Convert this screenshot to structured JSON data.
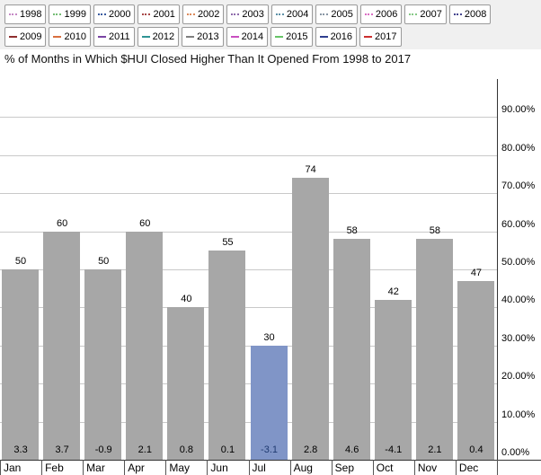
{
  "title": "% of Months in Which $HUI Closed Higher Than It Opened From 1998 to 2017",
  "legend": {
    "years": [
      {
        "label": "1998",
        "color": "#c689c6",
        "style": "dotted"
      },
      {
        "label": "1999",
        "color": "#74bd74",
        "style": "dotted"
      },
      {
        "label": "2000",
        "color": "#3a5ba0",
        "style": "dotted"
      },
      {
        "label": "2001",
        "color": "#a84848",
        "style": "dotted"
      },
      {
        "label": "2002",
        "color": "#dd8a5a",
        "style": "dotted"
      },
      {
        "label": "2003",
        "color": "#8f6bac",
        "style": "dotted"
      },
      {
        "label": "2004",
        "color": "#5e92a8",
        "style": "dotted"
      },
      {
        "label": "2005",
        "color": "#8a97a5",
        "style": "dotted"
      },
      {
        "label": "2006",
        "color": "#da6ec4",
        "style": "dotted"
      },
      {
        "label": "2007",
        "color": "#86c986",
        "style": "dotted"
      },
      {
        "label": "2008",
        "color": "#45458f",
        "style": "dotted"
      },
      {
        "label": "2009",
        "color": "#8f2e2e",
        "style": "solid"
      },
      {
        "label": "2010",
        "color": "#d96f3f",
        "style": "solid"
      },
      {
        "label": "2011",
        "color": "#7a44a3",
        "style": "solid"
      },
      {
        "label": "2012",
        "color": "#2f9494",
        "style": "solid"
      },
      {
        "label": "2013",
        "color": "#7f7f7f",
        "style": "solid"
      },
      {
        "label": "2014",
        "color": "#c94fc0",
        "style": "solid"
      },
      {
        "label": "2015",
        "color": "#67c467",
        "style": "solid"
      },
      {
        "label": "2016",
        "color": "#2f3f8f",
        "style": "solid"
      },
      {
        "label": "2017",
        "color": "#cc2f2f",
        "style": "solid"
      }
    ]
  },
  "chart_data": {
    "type": "bar",
    "title": "% of Months in Which $HUI Closed Higher Than It Opened From 1998 to 2017",
    "categories": [
      "Jan",
      "Feb",
      "Mar",
      "Apr",
      "May",
      "Jun",
      "Jul",
      "Aug",
      "Sep",
      "Oct",
      "Nov",
      "Dec"
    ],
    "values": [
      50,
      60,
      50,
      60,
      40,
      55,
      30,
      74,
      58,
      42,
      58,
      47
    ],
    "bar_labels": [
      "50",
      "60",
      "50",
      "60",
      "40",
      "55",
      "30",
      "74",
      "58",
      "42",
      "58",
      "47"
    ],
    "footer_values": [
      "3.3",
      "3.7",
      "-0.9",
      "2.1",
      "0.8",
      "0.1",
      "-3.1",
      "2.8",
      "4.6",
      "-4.1",
      "2.1",
      "0.4"
    ],
    "ylim": [
      0,
      100
    ],
    "ytick_step": 10,
    "yticks": [
      "0.00%",
      "10.00%",
      "20.00%",
      "30.00%",
      "40.00%",
      "50.00%",
      "60.00%",
      "70.00%",
      "80.00%",
      "90.00%"
    ],
    "grid": true,
    "legend_position": "top",
    "yaxis_position": "right",
    "highlight_index": 6,
    "highlighted_category": "Jul",
    "colors": {
      "bar": "#a7a7a7",
      "highlight_bar": "#8095c7",
      "grid": "#c9c9c9",
      "axis": "#333333",
      "text": "#000000",
      "highlight_footer_text": "#1f3a70",
      "legend_background": "#f0f0f0"
    }
  }
}
